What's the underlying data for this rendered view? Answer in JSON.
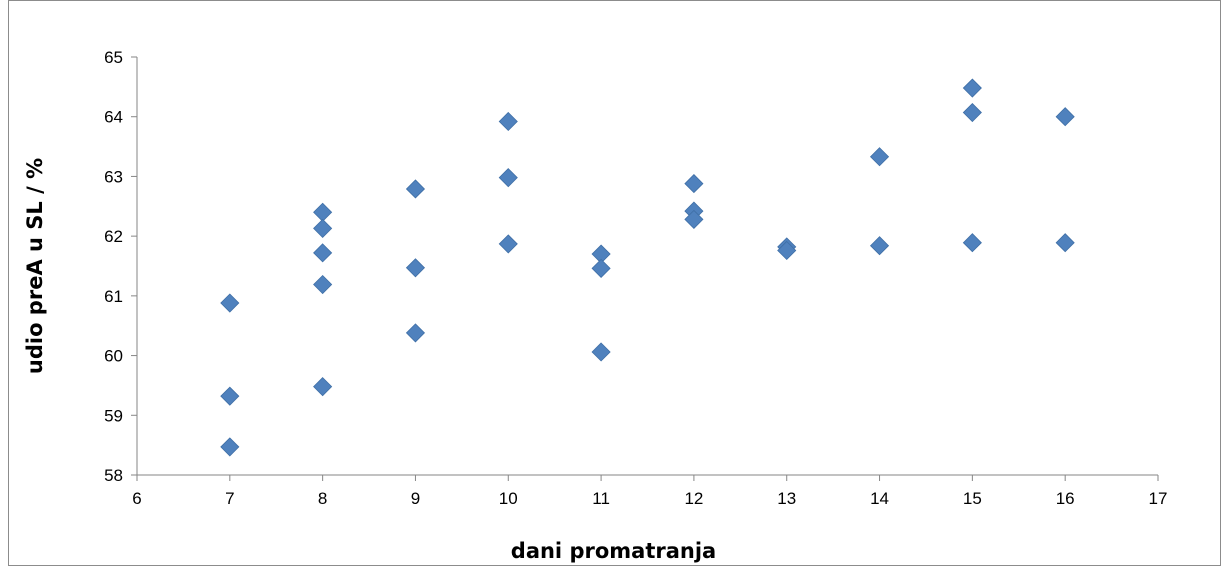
{
  "chart_data": {
    "type": "scatter",
    "title": "",
    "xlabel": "dani promatranja",
    "ylabel": "udio preA u SL / %",
    "xlim": [
      6,
      17
    ],
    "ylim": [
      58,
      65
    ],
    "x_ticks": [
      6,
      7,
      8,
      9,
      10,
      11,
      12,
      13,
      14,
      15,
      16,
      17
    ],
    "y_ticks": [
      58,
      59,
      60,
      61,
      62,
      63,
      64,
      65
    ],
    "grid": false,
    "legend": "none",
    "marker": "diamond",
    "marker_color": "#4F81BD",
    "series": [
      {
        "points": [
          [
            7,
            60.88
          ],
          [
            7,
            59.32
          ],
          [
            7,
            58.47
          ],
          [
            8,
            62.4
          ],
          [
            8,
            62.13
          ],
          [
            8,
            61.72
          ],
          [
            8,
            61.19
          ],
          [
            8,
            59.48
          ],
          [
            9,
            62.79
          ],
          [
            9,
            61.47
          ],
          [
            9,
            60.38
          ],
          [
            10,
            63.92
          ],
          [
            10,
            62.98
          ],
          [
            10,
            61.87
          ],
          [
            11,
            61.7
          ],
          [
            11,
            61.46
          ],
          [
            11,
            60.06
          ],
          [
            12,
            62.88
          ],
          [
            12,
            62.42
          ],
          [
            12,
            62.28
          ],
          [
            13,
            61.82
          ],
          [
            13,
            61.76
          ],
          [
            14,
            63.33
          ],
          [
            14,
            61.84
          ],
          [
            15,
            64.48
          ],
          [
            15,
            64.07
          ],
          [
            15,
            61.89
          ],
          [
            16,
            64.0
          ],
          [
            16,
            61.89
          ]
        ]
      }
    ]
  }
}
